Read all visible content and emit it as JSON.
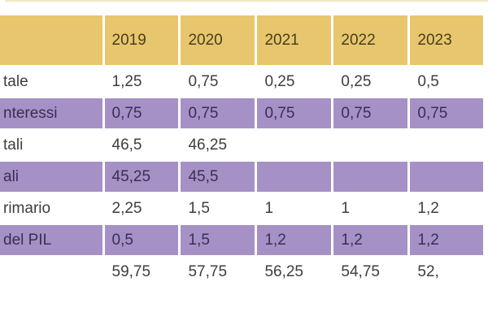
{
  "chart_data": {
    "type": "table",
    "title": "",
    "columns": [
      "",
      "2019",
      "2020",
      "2021",
      "2022",
      "2023"
    ],
    "rows": [
      {
        "label": "tale",
        "values": [
          "1,25",
          "0,75",
          "0,25",
          "0,25",
          "0,5"
        ]
      },
      {
        "label": "nteressi",
        "values": [
          "0,75",
          "0,75",
          "0,75",
          "0,75",
          "0,75"
        ]
      },
      {
        "label": "tali",
        "values": [
          "46,5",
          "46,25",
          "",
          "",
          ""
        ]
      },
      {
        "label": "ali",
        "values": [
          "45,25",
          "45,5",
          "",
          "",
          ""
        ]
      },
      {
        "label": "rimario",
        "values": [
          "2,25",
          "1,5",
          "1",
          "1",
          "1,2"
        ]
      },
      {
        "label": "del PIL",
        "values": [
          "0,5",
          "1,5",
          "1,2",
          "1,2",
          "1,2"
        ]
      },
      {
        "label": "",
        "values": [
          "59,75",
          "57,75",
          "56,25",
          "54,75",
          "52,"
        ]
      }
    ],
    "row_styles": [
      "white",
      "purple",
      "white",
      "purple",
      "white",
      "purple",
      "white"
    ],
    "layout_hints": {
      "clipped_edges": "table cropped at left, top and right of viewport",
      "header_position": "top row",
      "decimal_separator": ","
    },
    "colors": {
      "header_bg": "#e7c66d",
      "alt_row_bg": "#a591c5",
      "plain_row_bg": "#ffffff",
      "header_text": "#493d1d",
      "plain_row_text": "#3f3d3e",
      "alt_row_text": "#3b2e55",
      "gutter": "#ffffff",
      "top_sliver": "#f2e7c3"
    }
  }
}
